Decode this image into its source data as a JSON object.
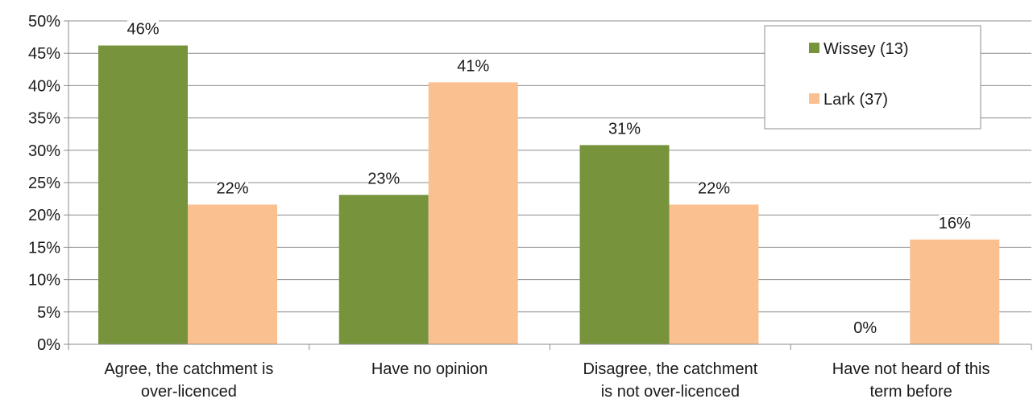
{
  "chart_data": {
    "type": "bar",
    "title": "",
    "xlabel": "",
    "ylabel": "",
    "ylim": [
      0,
      50
    ],
    "yticks": [
      0,
      5,
      10,
      15,
      20,
      25,
      30,
      35,
      40,
      45,
      50
    ],
    "ytick_format": "%",
    "grid": true,
    "legend_position": "top-right",
    "categories": [
      [
        "Agree, the catchment is",
        "over-licenced"
      ],
      [
        "Have no opinion"
      ],
      [
        "Disagree, the catchment",
        "is not over-licenced"
      ],
      [
        "Have not heard of this",
        "term before"
      ]
    ],
    "series": [
      {
        "name": "Wissey (13)",
        "color": "#77933c",
        "values": [
          46.2,
          23.1,
          30.8,
          0
        ],
        "labels": [
          "46%",
          "23%",
          "31%",
          "0%"
        ]
      },
      {
        "name": "Lark (37)",
        "color": "#fac090",
        "values": [
          21.6,
          40.5,
          21.6,
          16.2
        ],
        "labels": [
          "22%",
          "41%",
          "22%",
          "16%"
        ]
      }
    ]
  }
}
